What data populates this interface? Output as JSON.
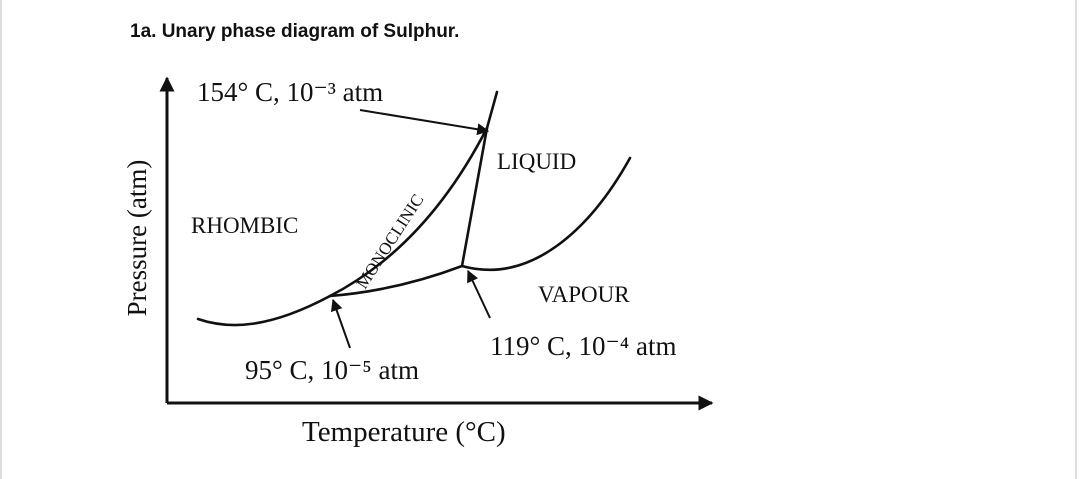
{
  "header": {
    "title": "1a. Unary phase diagram of Sulphur."
  },
  "axes": {
    "x_label": "Temperature (°C)",
    "y_label": "Pressure (atm)"
  },
  "regions": {
    "rhombic": "RHOMBIC",
    "monoclinic": "MONOCLINIC",
    "liquid": "LIQUID",
    "vapour": "VAPOUR"
  },
  "points": [
    {
      "label": "154° C, 10⁻³ atm"
    },
    {
      "label": "119° C, 10⁻⁴ atm"
    },
    {
      "label": "95° C, 10⁻⁵ atm"
    }
  ]
}
